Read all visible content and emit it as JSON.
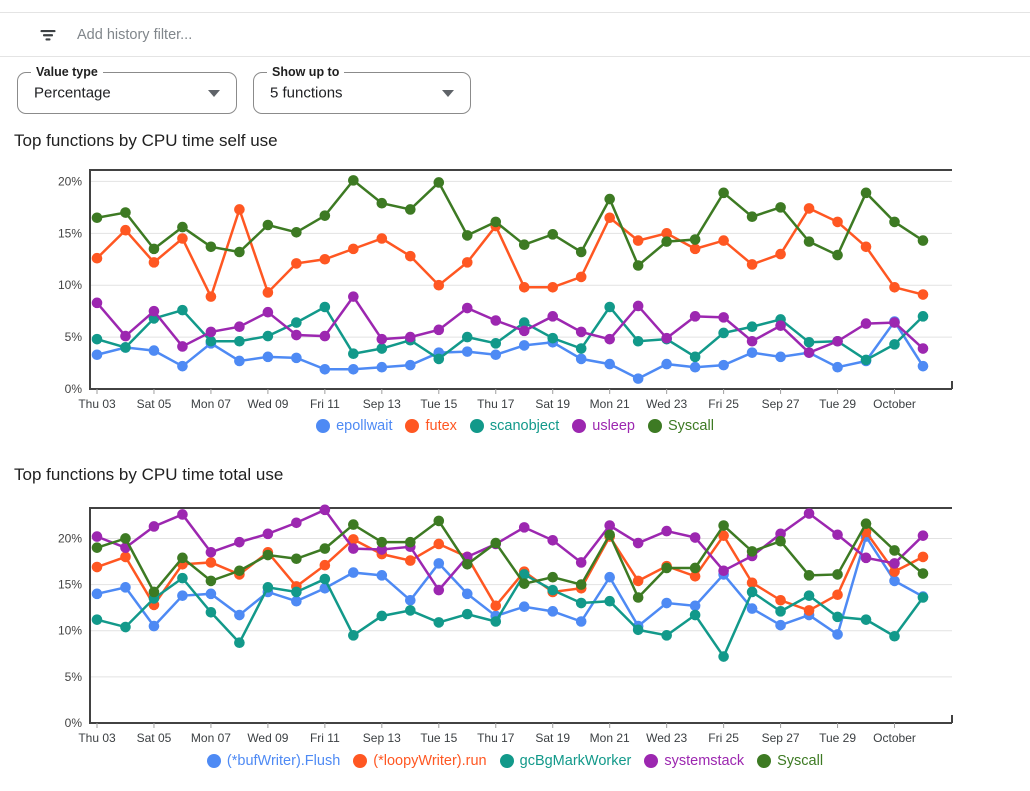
{
  "filter_bar": {
    "placeholder": "Add history filter...",
    "icon": "filter-list-icon"
  },
  "controls": [
    {
      "label": "Value type",
      "value": "Percentage"
    },
    {
      "label": "Show up to",
      "value": "5 functions"
    }
  ],
  "colors": {
    "series_blue": "#4e8af4",
    "series_orange": "#ff5722",
    "series_teal": "#12998a",
    "series_purple": "#9c27b0",
    "series_green": "#3d7a23",
    "divider": "#e4e4e4",
    "axis": "#424242",
    "gridline": "#e2e2e2"
  },
  "chart_data": [
    {
      "type": "line",
      "title": "Top functions by CPU time self use",
      "categories": [
        "Thu 03",
        "Sat 05",
        "Mon 07",
        "Wed 09",
        "Fri 11",
        "Sep 13",
        "Tue 15",
        "Thu 17",
        "Sat 19",
        "Mon 21",
        "Wed 23",
        "Fri 25",
        "Sep 27",
        "Tue 29",
        "October"
      ],
      "points_per_category": 2,
      "xlabel": "",
      "ylabel": "",
      "ylim": [
        0,
        21.1
      ],
      "grid": true,
      "legend_position": "bottom",
      "y_ticks": [
        {
          "value": 0,
          "label": "0%"
        },
        {
          "value": 5,
          "label": "5%"
        },
        {
          "value": 10,
          "label": "10%"
        },
        {
          "value": 15,
          "label": "15%"
        },
        {
          "value": 20,
          "label": "20%"
        }
      ],
      "series": [
        {
          "name": "epollwait",
          "color": "#4e8af4",
          "values": [
            3.3,
            4.0,
            3.7,
            2.2,
            4.4,
            2.7,
            3.1,
            3.0,
            1.9,
            1.9,
            2.1,
            2.3,
            3.5,
            3.6,
            3.3,
            4.2,
            4.5,
            2.9,
            2.4,
            1.0,
            2.4,
            2.1,
            2.3,
            3.5,
            3.1,
            3.5,
            2.1,
            2.7,
            6.5,
            2.2
          ]
        },
        {
          "name": "futex",
          "color": "#ff5722",
          "values": [
            12.6,
            15.3,
            12.2,
            14.5,
            8.9,
            17.3,
            9.3,
            12.1,
            12.5,
            13.5,
            14.5,
            12.8,
            10.0,
            12.2,
            15.7,
            9.8,
            9.8,
            10.8,
            16.5,
            14.3,
            15.0,
            13.5,
            14.3,
            12.0,
            13.0,
            17.4,
            16.1,
            13.7,
            9.8,
            9.1
          ]
        },
        {
          "name": "scanobject",
          "color": "#12998a",
          "values": [
            4.8,
            4.0,
            6.8,
            7.6,
            4.6,
            4.6,
            5.1,
            6.4,
            7.9,
            3.4,
            3.9,
            4.7,
            2.9,
            5.0,
            4.4,
            6.4,
            4.9,
            3.9,
            7.9,
            4.6,
            4.8,
            3.1,
            5.4,
            6.0,
            6.7,
            4.5,
            4.6,
            2.8,
            4.3,
            7.0
          ]
        },
        {
          "name": "usleep",
          "color": "#9c27b0",
          "values": [
            8.3,
            5.1,
            7.5,
            4.1,
            5.5,
            6.0,
            7.4,
            5.2,
            5.1,
            8.9,
            4.8,
            5.0,
            5.7,
            7.8,
            6.6,
            5.6,
            7.0,
            5.5,
            4.8,
            8.0,
            4.9,
            7.0,
            6.9,
            4.6,
            6.1,
            3.5,
            4.6,
            6.3,
            6.4,
            3.9
          ]
        },
        {
          "name": "Syscall",
          "color": "#3d7a23",
          "values": [
            16.5,
            17.0,
            13.5,
            15.6,
            13.7,
            13.2,
            15.8,
            15.1,
            16.7,
            20.1,
            17.9,
            17.3,
            19.9,
            14.8,
            16.1,
            13.9,
            14.9,
            13.2,
            18.3,
            11.9,
            14.2,
            14.4,
            18.9,
            16.6,
            17.5,
            14.2,
            12.9,
            18.9,
            16.1,
            14.3
          ]
        }
      ]
    },
    {
      "type": "line",
      "title": "Top functions by CPU time total use",
      "categories": [
        "Thu 03",
        "Sat 05",
        "Mon 07",
        "Wed 09",
        "Fri 11",
        "Sep 13",
        "Tue 15",
        "Thu 17",
        "Sat 19",
        "Mon 21",
        "Wed 23",
        "Fri 25",
        "Sep 27",
        "Tue 29",
        "October"
      ],
      "points_per_category": 2,
      "xlabel": "",
      "ylabel": "",
      "ylim": [
        0,
        23.3
      ],
      "grid": true,
      "legend_position": "bottom",
      "y_ticks": [
        {
          "value": 0,
          "label": "0%"
        },
        {
          "value": 5,
          "label": "5%"
        },
        {
          "value": 10,
          "label": "10%"
        },
        {
          "value": 15,
          "label": "15%"
        },
        {
          "value": 20,
          "label": "20%"
        }
      ],
      "series": [
        {
          "name": "(*bufWriter).Flush",
          "color": "#4e8af4",
          "values": [
            14.0,
            14.7,
            10.5,
            13.8,
            14.0,
            11.7,
            14.2,
            13.2,
            14.6,
            16.3,
            16.0,
            13.3,
            17.3,
            14.0,
            11.6,
            12.6,
            12.1,
            11.0,
            15.8,
            10.5,
            13.0,
            12.7,
            16.1,
            12.4,
            10.6,
            11.7,
            9.6,
            20.2,
            15.4,
            13.7
          ]
        },
        {
          "name": "(*loopyWriter).run",
          "color": "#ff5722",
          "values": [
            16.9,
            18.0,
            12.8,
            17.2,
            17.4,
            16.1,
            18.5,
            14.8,
            17.1,
            19.9,
            18.3,
            17.6,
            19.4,
            18.0,
            12.7,
            16.4,
            14.2,
            14.6,
            20.2,
            15.4,
            17.0,
            15.9,
            20.3,
            15.2,
            13.3,
            12.2,
            13.9,
            20.7,
            16.4,
            18.0
          ]
        },
        {
          "name": "gcBgMarkWorker",
          "color": "#12998a",
          "values": [
            11.2,
            10.4,
            13.5,
            15.7,
            12.0,
            8.7,
            14.7,
            14.2,
            15.6,
            9.5,
            11.6,
            12.2,
            10.9,
            11.8,
            11.0,
            16.1,
            14.4,
            13.0,
            13.2,
            10.1,
            9.5,
            11.7,
            7.2,
            14.2,
            12.1,
            13.8,
            11.5,
            11.2,
            9.4,
            13.6
          ]
        },
        {
          "name": "systemstack",
          "color": "#9c27b0",
          "values": [
            20.2,
            19.0,
            21.3,
            22.6,
            18.5,
            19.6,
            20.5,
            21.7,
            23.1,
            18.9,
            18.8,
            19.1,
            14.4,
            18.0,
            19.4,
            21.2,
            19.8,
            17.4,
            21.4,
            19.5,
            20.8,
            20.1,
            16.5,
            18.1,
            20.5,
            22.7,
            20.4,
            17.9,
            17.3,
            20.3
          ]
        },
        {
          "name": "Syscall",
          "color": "#3d7a23",
          "values": [
            19.0,
            20.0,
            14.2,
            17.9,
            15.4,
            16.5,
            18.2,
            17.8,
            18.9,
            21.5,
            19.6,
            19.6,
            21.9,
            17.2,
            19.5,
            15.1,
            15.8,
            15.0,
            20.4,
            13.6,
            16.8,
            16.8,
            21.4,
            18.6,
            19.7,
            16.0,
            16.1,
            21.6,
            18.7,
            16.2
          ]
        }
      ]
    }
  ]
}
